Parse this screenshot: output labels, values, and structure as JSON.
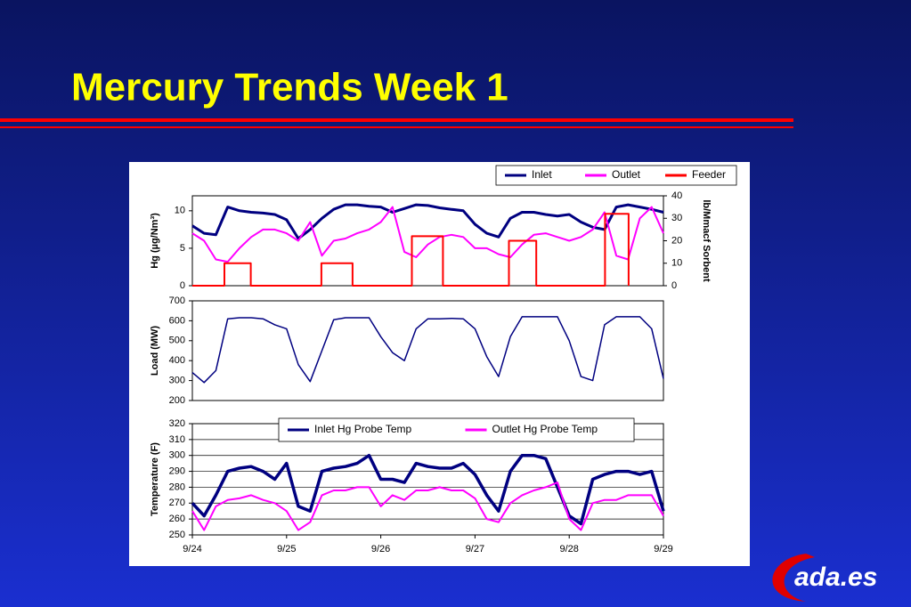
{
  "title": "Mercury Trends Week 1",
  "logo": "ada.es",
  "chart_data": [
    {
      "type": "line",
      "ylabel": "Hg (µg/Nm³)",
      "y2label": "lb/Mmacf Sorbent",
      "xlim": [
        0,
        5
      ],
      "ylim": [
        0,
        12
      ],
      "yticks": [
        0,
        5,
        10
      ],
      "y2lim": [
        0,
        40
      ],
      "y2ticks": [
        0,
        10,
        20,
        30,
        40
      ],
      "grid": false,
      "legend": "top-right",
      "x": [
        0,
        0.125,
        0.25,
        0.375,
        0.5,
        0.625,
        0.75,
        0.875,
        1,
        1.125,
        1.25,
        1.375,
        1.5,
        1.625,
        1.75,
        1.875,
        2,
        2.125,
        2.25,
        2.375,
        2.5,
        2.625,
        2.75,
        2.875,
        3,
        3.125,
        3.25,
        3.375,
        3.5,
        3.625,
        3.75,
        3.875,
        4,
        4.125,
        4.25,
        4.375,
        4.5,
        4.625,
        4.75,
        4.875,
        5
      ],
      "series": [
        {
          "name": "Inlet",
          "color": "#000080",
          "values": [
            8,
            7,
            6.8,
            10.5,
            10,
            9.8,
            9.7,
            9.5,
            8.8,
            6.3,
            7.5,
            9,
            10.2,
            10.8,
            10.8,
            10.6,
            10.5,
            9.8,
            10.3,
            10.8,
            10.7,
            10.4,
            10.2,
            10,
            8.2,
            7,
            6.5,
            9,
            9.8,
            9.8,
            9.5,
            9.3,
            9.5,
            8.5,
            7.8,
            7.5,
            10.5,
            10.8,
            10.5,
            10.2,
            9.8
          ]
        },
        {
          "name": "Outlet",
          "color": "#ff00ff",
          "values": [
            7,
            6,
            3.5,
            3.2,
            5,
            6.5,
            7.5,
            7.5,
            7,
            6,
            8.5,
            4,
            6,
            6.3,
            7,
            7.5,
            8.5,
            10.5,
            4.5,
            3.8,
            5.5,
            6.5,
            6.8,
            6.5,
            5,
            5,
            4.2,
            3.8,
            5.5,
            6.8,
            7,
            6.5,
            6,
            6.5,
            7.5,
            9.8,
            4,
            3.5,
            9,
            10.5,
            7
          ]
        },
        {
          "name": "Feeder",
          "color": "#ff0000",
          "axis": "y2",
          "x": [
            0,
            0.34,
            0.34,
            0.62,
            0.62,
            1.37,
            1.37,
            1.7,
            1.7,
            2.33,
            2.33,
            2.66,
            2.66,
            3.36,
            3.36,
            3.65,
            3.65,
            4.38,
            4.38,
            4.63,
            4.63
          ],
          "values": [
            0,
            0,
            10,
            10,
            0,
            0,
            10,
            10,
            0,
            0,
            22,
            22,
            0,
            0,
            20,
            20,
            0,
            0,
            32,
            32,
            0
          ]
        }
      ]
    },
    {
      "type": "line",
      "ylabel": "Load (MW)",
      "xlim": [
        0,
        5
      ],
      "ylim": [
        200,
        700
      ],
      "yticks": [
        200,
        300,
        400,
        500,
        600,
        700
      ],
      "grid": false,
      "x": [
        0,
        0.125,
        0.25,
        0.375,
        0.5,
        0.625,
        0.75,
        0.875,
        1,
        1.125,
        1.25,
        1.375,
        1.5,
        1.625,
        1.75,
        1.875,
        2,
        2.125,
        2.25,
        2.375,
        2.5,
        2.625,
        2.75,
        2.875,
        3,
        3.125,
        3.25,
        3.375,
        3.5,
        3.625,
        3.75,
        3.875,
        4,
        4.125,
        4.25,
        4.375,
        4.5,
        4.625,
        4.75,
        4.875,
        5
      ],
      "series": [
        {
          "color": "#000080",
          "values": [
            340,
            290,
            350,
            610,
            615,
            615,
            610,
            580,
            560,
            380,
            295,
            450,
            605,
            615,
            615,
            615,
            520,
            440,
            400,
            560,
            610,
            610,
            612,
            610,
            560,
            420,
            320,
            520,
            620,
            620,
            620,
            620,
            500,
            320,
            300,
            580,
            620,
            620,
            620,
            560,
            310
          ]
        }
      ]
    },
    {
      "type": "line",
      "ylabel": "Temperature (F)",
      "xlim": [
        0,
        5
      ],
      "ylim": [
        250,
        320
      ],
      "yticks": [
        250,
        260,
        270,
        280,
        290,
        300,
        310,
        320
      ],
      "xticks": [
        {
          "value": 0,
          "label": "9/24"
        },
        {
          "value": 1,
          "label": "9/25"
        },
        {
          "value": 2,
          "label": "9/26"
        },
        {
          "value": 3,
          "label": "9/27"
        },
        {
          "value": 4,
          "label": "9/28"
        },
        {
          "value": 5,
          "label": "9/29"
        }
      ],
      "grid": true,
      "legend": "top",
      "x": [
        0,
        0.125,
        0.25,
        0.375,
        0.5,
        0.625,
        0.75,
        0.875,
        1,
        1.125,
        1.25,
        1.375,
        1.5,
        1.625,
        1.75,
        1.875,
        2,
        2.125,
        2.25,
        2.375,
        2.5,
        2.625,
        2.75,
        2.875,
        3,
        3.125,
        3.25,
        3.375,
        3.5,
        3.625,
        3.75,
        3.875,
        4,
        4.125,
        4.25,
        4.375,
        4.5,
        4.625,
        4.75,
        4.875,
        5
      ],
      "series": [
        {
          "name": "Inlet Hg Probe Temp",
          "color": "#000080",
          "values": [
            270,
            262,
            275,
            290,
            292,
            293,
            290,
            285,
            295,
            268,
            265,
            290,
            292,
            293,
            295,
            300,
            285,
            285,
            283,
            295,
            293,
            292,
            292,
            295,
            288,
            275,
            265,
            290,
            300,
            300,
            298,
            280,
            262,
            257,
            285,
            288,
            290,
            290,
            288,
            290,
            265
          ]
        },
        {
          "name": "Outlet Hg Probe Temp",
          "color": "#ff00ff",
          "values": [
            265,
            253,
            268,
            272,
            273,
            275,
            272,
            270,
            265,
            253,
            258,
            275,
            278,
            278,
            280,
            280,
            268,
            275,
            272,
            278,
            278,
            280,
            278,
            278,
            273,
            260,
            258,
            270,
            275,
            278,
            280,
            283,
            260,
            253,
            270,
            272,
            272,
            275,
            275,
            275,
            262
          ]
        }
      ]
    }
  ]
}
